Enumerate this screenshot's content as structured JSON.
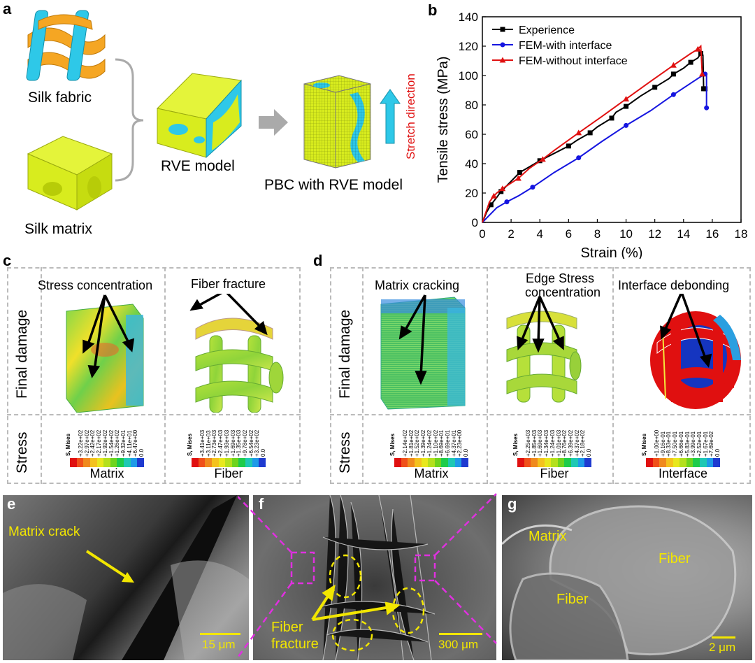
{
  "panels": {
    "a": {
      "label": "a",
      "silk_fabric": "Silk fabric",
      "silk_matrix": "Silk matrix",
      "rve_model": "RVE model",
      "pbc_model": "PBC with RVE model",
      "stretch_direction": "Stretch direction",
      "colors": {
        "cyan": "#2ec8e8",
        "orange": "#f5a623",
        "yellow_green": "#d8ec1e",
        "red": "#e01010"
      }
    },
    "b": {
      "label": "b"
    },
    "c": {
      "label": "c",
      "row_final": "Final damage",
      "row_stress": "Stress",
      "stress_concentration": "Stress concentration",
      "fiber_fracture": "Fiber fracture",
      "legend_matrix": {
        "name": "Matrix",
        "smises": "S, Mises",
        "ticks": [
          "+3.22e+02",
          "+2.97e+02",
          "+2.42e+02",
          "+2.17e+02",
          "+1.92e+02",
          "+1.54e+02",
          "+1.26e+02",
          "+9.32e+01",
          "+4.11e+01",
          "+6.47e+00",
          "0.0"
        ]
      },
      "legend_fiber": {
        "name": "Fiber",
        "smises": "S, Mises",
        "ticks": [
          "+3.41e+03",
          "+3.11e+03",
          "+2.73e+03",
          "+2.47e+03",
          "+1.93e+03",
          "+1.69e+03",
          "+1.35e+03",
          "+9.78e+02",
          "+6.54e+02",
          "+3.23e+02",
          "0.0"
        ]
      }
    },
    "d": {
      "label": "d",
      "row_final": "Final damage",
      "row_stress": "Stress",
      "matrix_cracking": "Matrix cracking",
      "edge_stress_1": "Edge Stress",
      "edge_stress_2": "concentration",
      "interface_debonding": "Interface debonding",
      "legend_matrix": {
        "name": "Matrix",
        "smises": "S, Mises",
        "ticks": [
          "+2.14e+02",
          "+1.81e+02",
          "+1.52e+02",
          "+1.39e+02",
          "+1.24e+02",
          "+1.10e+02",
          "+8.69e+01",
          "+6.69e+01",
          "+4.37e+01",
          "+2.23e+00",
          "0.0"
        ]
      },
      "legend_fiber": {
        "name": "Fiber",
        "smises": "S, Mises",
        "ticks": [
          "+2.25e+03",
          "+1.85e+03",
          "+1.69e+03",
          "+1.34e+03",
          "+1.24e+03",
          "+1.01e+03",
          "+8.76e+02",
          "+6.39e+02",
          "+4.37e+02",
          "+2.18e+02",
          "0.0"
        ]
      },
      "legend_interface": {
        "name": "Interface",
        "smises": "S, Mises",
        "ticks": [
          "+1.00e+00",
          "+9.16e-01",
          "+8.33e-01",
          "+7.50e-01",
          "+6.66e-01",
          "+5.83e-01",
          "+3.99e-01",
          "+2.52e-01",
          "+1.67e-01",
          "+7.69e-02",
          "0.0"
        ]
      }
    },
    "e": {
      "label": "e",
      "matrix_crack": "Matrix crack",
      "scale": "15 μm"
    },
    "f": {
      "label": "f",
      "fiber": "Fiber",
      "fracture": "fracture",
      "scale": "300 μm"
    },
    "g": {
      "label": "g",
      "matrix": "Matrix",
      "fiber_1": "Fiber",
      "fiber_2": "Fiber",
      "scale": "2 μm"
    }
  },
  "chart_data": {
    "type": "line",
    "xlabel": "Strain (%)",
    "ylabel": "Tensile stress (MPa)",
    "xlim": [
      0,
      18
    ],
    "ylim": [
      0,
      140
    ],
    "xticks": [
      0,
      2,
      4,
      6,
      8,
      10,
      12,
      14,
      16,
      18
    ],
    "yticks": [
      0,
      20,
      40,
      60,
      80,
      100,
      120,
      140
    ],
    "legend_position": "top-left",
    "series": [
      {
        "name": "Experience",
        "color": "#000000",
        "marker": "square",
        "x": [
          0,
          0.3,
          0.6,
          1.0,
          1.3,
          2.0,
          2.6,
          3.3,
          4.0,
          5.0,
          6.0,
          6.6,
          7.5,
          8.0,
          9.0,
          9.3,
          10.0,
          11.0,
          12.0,
          13.0,
          13.3,
          14.0,
          14.5,
          15.0,
          15.2,
          15.35,
          15.4,
          15.5
        ],
        "y": [
          0,
          7,
          12,
          17,
          21,
          28,
          34,
          38,
          42,
          47,
          52,
          56,
          61,
          65,
          71,
          75,
          79,
          86,
          92,
          98,
          101,
          105,
          109,
          112,
          115,
          114,
          91,
          91
        ]
      },
      {
        "name": "FEM-with interface",
        "color": "#1515e0",
        "marker": "circle",
        "x": [
          0,
          1.0,
          1.7,
          2.5,
          3.5,
          5.0,
          6.7,
          8.3,
          10.0,
          11.7,
          13.3,
          15.0,
          15.5,
          15.6,
          15.6
        ],
        "y": [
          0,
          10,
          14,
          18,
          24,
          34,
          44,
          55,
          66,
          76,
          87,
          98,
          101,
          101,
          78
        ]
      },
      {
        "name": "FEM-without interface",
        "color": "#e01010",
        "marker": "triangle",
        "x": [
          0,
          0.5,
          0.8,
          1.0,
          1.4,
          1.8,
          2.5,
          3.3,
          4.2,
          5.0,
          6.7,
          8.3,
          10.0,
          11.7,
          13.3,
          14.5,
          15.0,
          15.2,
          15.3
        ],
        "y": [
          0,
          14,
          18,
          20,
          23,
          25.5,
          30,
          37,
          43,
          49,
          61,
          72,
          84,
          96,
          107,
          115,
          118,
          120,
          101
        ]
      }
    ]
  }
}
